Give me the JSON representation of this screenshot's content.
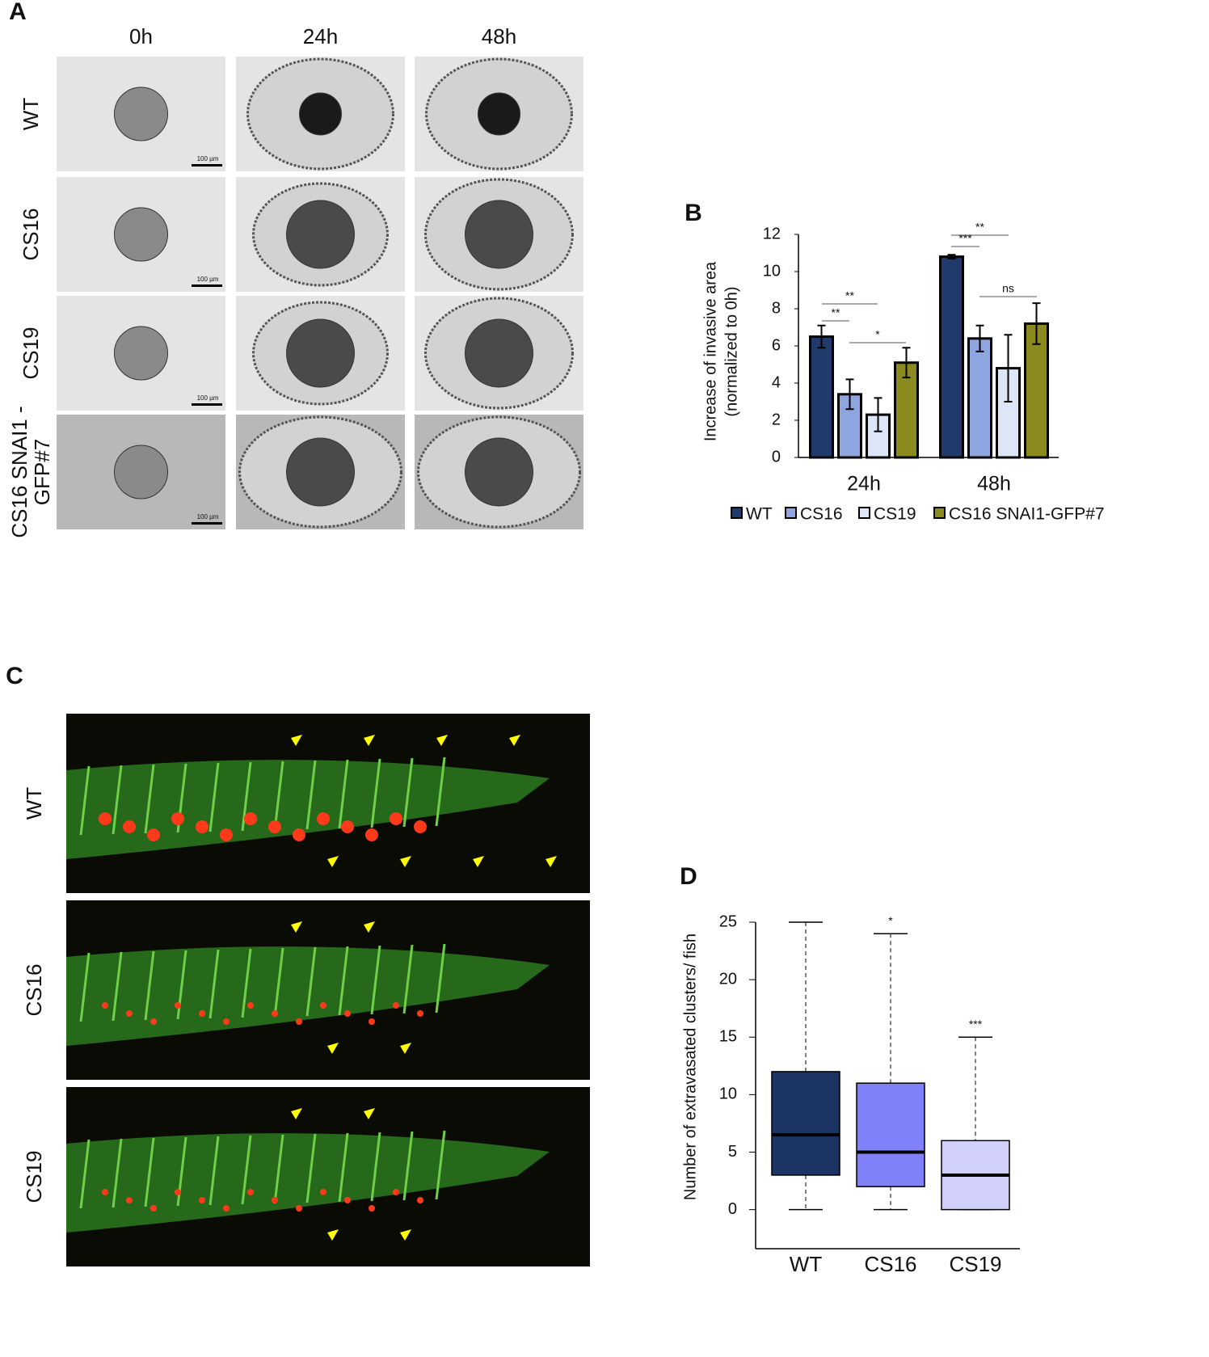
{
  "panel_a": {
    "label": "A",
    "columns": [
      "0h",
      "24h",
      "48h"
    ],
    "rows": [
      [
        "WT"
      ],
      [
        "CS16"
      ],
      [
        "CS19"
      ],
      [
        "CS16 SNAI1 -",
        "GFP#7"
      ]
    ],
    "scale_bar": "100 µm"
  },
  "panel_c": {
    "label": "C",
    "rows": [
      "WT",
      "CS16",
      "CS19"
    ]
  },
  "chart_data": [
    {
      "type": "bar",
      "label": "B",
      "ylabel": [
        "Increase of invasive area",
        "(normalized to 0h)"
      ],
      "categories": [
        "24h",
        "48h"
      ],
      "series": [
        {
          "name": "WT",
          "color": "#1f3a6b",
          "values": [
            6.5,
            10.8
          ],
          "errors": [
            0.6,
            0.1
          ]
        },
        {
          "name": "CS16",
          "color": "#8fa5e0",
          "values": [
            3.4,
            6.4
          ],
          "errors": [
            0.8,
            0.7
          ]
        },
        {
          "name": "CS19",
          "color": "#dde6f7",
          "values": [
            2.3,
            4.8
          ],
          "errors": [
            0.9,
            1.8
          ]
        },
        {
          "name": "CS16 SNAI1-GFP#7",
          "color": "#8a8a1e",
          "values": [
            5.1,
            7.2
          ],
          "errors": [
            0.8,
            1.1
          ]
        }
      ],
      "annotations": [
        "**",
        "**",
        "*",
        "***",
        "**",
        "ns"
      ],
      "ylim": [
        0,
        12
      ],
      "yticks": [
        0,
        2,
        4,
        6,
        8,
        10,
        12
      ]
    },
    {
      "type": "box",
      "label": "D",
      "ylabel": "Number of extravasated clusters/ fish",
      "categories": [
        "WT",
        "CS16",
        "CS19"
      ],
      "boxes": [
        {
          "min": 0,
          "q1": 3,
          "median": 6.5,
          "q3": 12,
          "max": 25,
          "color": "#1b3463"
        },
        {
          "min": 0,
          "q1": 2,
          "median": 5,
          "q3": 11,
          "max": 24,
          "color": "#8080f8"
        },
        {
          "min": 0,
          "q1": 0,
          "median": 3,
          "q3": 6,
          "max": 15,
          "color": "#d0d0fb"
        }
      ],
      "significance": [
        null,
        "*",
        "***"
      ],
      "ylim": [
        -3.4,
        25
      ],
      "yticks": [
        0,
        5,
        10,
        15,
        20,
        25
      ]
    }
  ]
}
